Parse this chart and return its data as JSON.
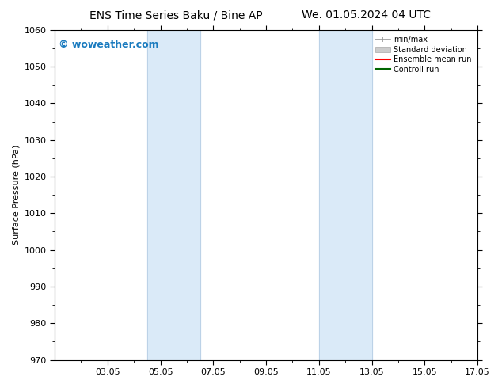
{
  "title_left": "ENS Time Series Baku / Bine AP",
  "title_right": "We. 01.05.2024 04 UTC",
  "ylabel": "Surface Pressure (hPa)",
  "ylim": [
    970,
    1060
  ],
  "yticks": [
    970,
    980,
    990,
    1000,
    1010,
    1020,
    1030,
    1040,
    1050,
    1060
  ],
  "xlim_start": 1,
  "xlim_end": 17,
  "xtick_labels": [
    "03.05",
    "05.05",
    "07.05",
    "09.05",
    "11.05",
    "13.05",
    "15.05",
    "17.05"
  ],
  "xtick_positions": [
    3,
    5,
    7,
    9,
    11,
    13,
    15,
    17
  ],
  "shaded_bands": [
    {
      "xmin": 4.5,
      "xmax": 6.5
    },
    {
      "xmin": 11.0,
      "xmax": 13.0
    }
  ],
  "shaded_color": "#daeaf8",
  "watermark_text": "© woweather.com",
  "watermark_color": "#1a7bbf",
  "legend_entries": [
    {
      "label": "min/max",
      "color": "#999999",
      "linestyle": "-"
    },
    {
      "label": "Standard deviation",
      "color": "#cccccc",
      "linestyle": "-"
    },
    {
      "label": "Ensemble mean run",
      "color": "#ff0000",
      "linestyle": "-"
    },
    {
      "label": "Controll run",
      "color": "#006600",
      "linestyle": "-"
    }
  ],
  "background_color": "#ffffff",
  "title_fontsize": 10,
  "axis_label_fontsize": 8,
  "tick_fontsize": 8,
  "legend_fontsize": 7,
  "watermark_fontsize": 9
}
